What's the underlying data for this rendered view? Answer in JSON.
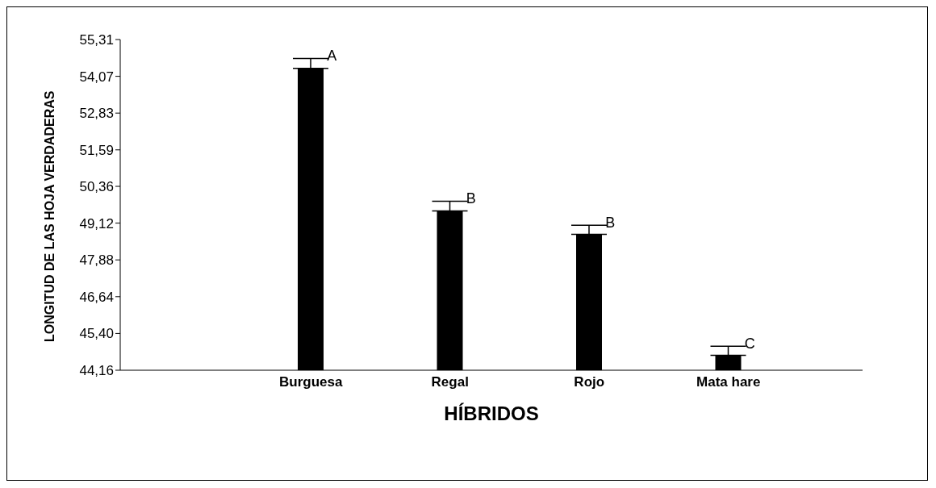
{
  "chart_data": {
    "type": "bar",
    "xlabel": "HÍBRIDOS",
    "ylabel": "LONGITUD DE LAS HOJA VERDADERAS",
    "categories": [
      "Burguesa",
      "Regal",
      "Rojo",
      "Mata hare"
    ],
    "values": [
      54.34,
      49.53,
      48.74,
      44.66
    ],
    "errors": [
      [
        54.34,
        54.67
      ],
      [
        49.53,
        49.86
      ],
      [
        48.74,
        49.05
      ],
      [
        44.66,
        44.97
      ]
    ],
    "color": "#000000",
    "ylim": [
      44.16,
      55.31
    ],
    "yticks": [
      {
        "value": 44.16,
        "label": "44,16"
      },
      {
        "value": 45.4,
        "label": "45,40"
      },
      {
        "value": 46.64,
        "label": "46,64"
      },
      {
        "value": 47.88,
        "label": "47,88"
      },
      {
        "value": 49.12,
        "label": "49,12"
      },
      {
        "value": 50.36,
        "label": "50,36"
      },
      {
        "value": 51.59,
        "label": "51,59"
      },
      {
        "value": 52.83,
        "label": "52,83"
      },
      {
        "value": 54.07,
        "label": "54,07"
      },
      {
        "value": 55.31,
        "label": "55,31"
      }
    ],
    "annotations": [
      {
        "text": "A",
        "x": "Burguesa",
        "y": 54.67
      },
      {
        "text": "B",
        "x": "Regal",
        "y": 49.86
      },
      {
        "text": "B",
        "x": "Rojo",
        "y": 49.05
      },
      {
        "text": "C",
        "x": "Mata hare",
        "y": 44.97
      }
    ],
    "grid": false,
    "legend": false
  }
}
